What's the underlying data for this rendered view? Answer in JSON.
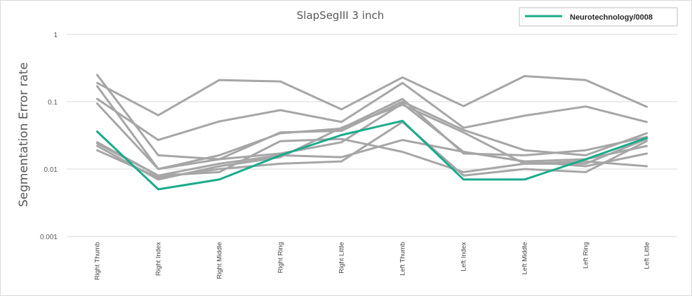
{
  "chart_data": {
    "type": "line",
    "title": "SlapSegIII 3 inch",
    "xlabel": "",
    "ylabel": "Segmentation Error rate",
    "y_scale": "log",
    "ylim": [
      0.001,
      1
    ],
    "y_ticks": [
      "1",
      "0.1",
      "0.01",
      "0.001"
    ],
    "grid": "horizontal",
    "legend_position": "top-right",
    "categories": [
      "Right Thumb",
      "Right Index",
      "Right Middle",
      "Right Ring",
      "Right Little",
      "Left Thumb",
      "Left Index",
      "Left Middle",
      "Left Ring",
      "Left Little"
    ],
    "background_series_color": "#a6a6a6",
    "highlight_color": "#1aab8a",
    "series": [
      {
        "values": [
          0.19,
          0.063,
          0.21,
          0.2,
          0.077,
          0.23,
          0.086,
          0.24,
          0.21,
          0.084
        ]
      },
      {
        "values": [
          0.11,
          0.027,
          0.051,
          0.075,
          0.05,
          0.19,
          0.041,
          0.062,
          0.085,
          0.05
        ]
      },
      {
        "values": [
          0.25,
          0.016,
          0.014,
          0.035,
          0.037,
          0.1,
          0.038,
          0.019,
          0.016,
          0.034
        ]
      },
      {
        "values": [
          0.17,
          0.01,
          0.016,
          0.034,
          0.04,
          0.11,
          0.017,
          0.016,
          0.019,
          0.03
        ]
      },
      {
        "values": [
          0.094,
          0.01,
          0.014,
          0.017,
          0.025,
          0.094,
          0.018,
          0.013,
          0.014,
          0.022
        ]
      },
      {
        "values": [
          0.025,
          0.008,
          0.012,
          0.016,
          0.015,
          0.027,
          0.018,
          0.013,
          0.011,
          0.017
        ]
      },
      {
        "values": [
          0.024,
          0.008,
          0.009,
          0.026,
          0.028,
          0.018,
          0.009,
          0.012,
          0.013,
          0.011
        ]
      },
      {
        "values": [
          0.019,
          0.0075,
          0.01,
          0.012,
          0.013,
          0.05,
          0.008,
          0.01,
          0.009,
          0.026
        ]
      },
      {
        "values": [
          0.022,
          0.007,
          0.011,
          0.015,
          0.041,
          0.09,
          0.035,
          0.012,
          0.012,
          0.028
        ]
      },
      {
        "name": "Neurotechnology/0008",
        "highlight": true,
        "values": [
          0.036,
          0.005,
          0.007,
          0.016,
          0.032,
          0.052,
          0.007,
          0.007,
          0.014,
          0.029
        ]
      }
    ]
  }
}
